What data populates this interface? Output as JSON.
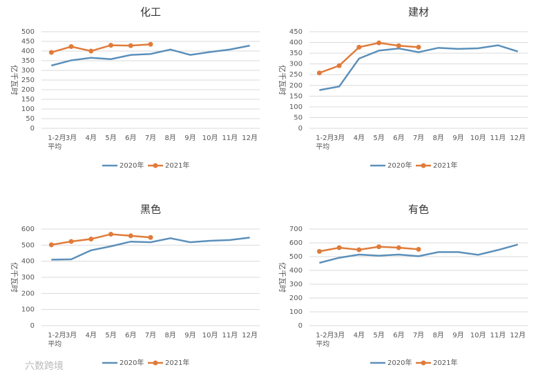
{
  "chart_data": [
    {
      "type": "line",
      "title": "化工",
      "y_label": "亿千瓦时",
      "categories": [
        "1-2月\n平均",
        "3月",
        "4月",
        "5月",
        "6月",
        "7月",
        "8月",
        "9月",
        "10月",
        "11月",
        "12月"
      ],
      "series": [
        {
          "name": "2020年",
          "color": "#5b8fba",
          "values": [
            325,
            352,
            365,
            358,
            380,
            385,
            408,
            380,
            395,
            408,
            428
          ]
        },
        {
          "name": "2021年",
          "color": "#e07b39",
          "values": [
            393,
            423,
            400,
            430,
            428,
            435,
            null,
            null,
            null,
            null,
            null
          ]
        }
      ],
      "ylim": [
        0,
        500
      ],
      "yticks": [
        0,
        50,
        100,
        150,
        200,
        250,
        300,
        350,
        400,
        450,
        500
      ],
      "grid": true,
      "legend": "bottom"
    },
    {
      "type": "line",
      "title": "建材",
      "y_label": "亿千瓦时",
      "categories": [
        "1-2月\n平均",
        "3月",
        "4月",
        "5月",
        "6月",
        "7月",
        "8月",
        "9月",
        "10月",
        "11月",
        "12月"
      ],
      "series": [
        {
          "name": "2020年",
          "color": "#5b8fba",
          "values": [
            178,
            195,
            325,
            362,
            372,
            355,
            375,
            370,
            373,
            387,
            358
          ]
        },
        {
          "name": "2021年",
          "color": "#e07b39",
          "values": [
            258,
            292,
            378,
            398,
            385,
            378,
            null,
            null,
            null,
            null,
            null
          ]
        }
      ],
      "ylim": [
        0,
        450
      ],
      "yticks": [
        0,
        50,
        100,
        150,
        200,
        250,
        300,
        350,
        400,
        450
      ],
      "grid": true,
      "legend": "bottom"
    },
    {
      "type": "line",
      "title": "黑色",
      "y_label": "亿千瓦时",
      "categories": [
        "1-2月\n平均",
        "3月",
        "4月",
        "5月",
        "6月",
        "7月",
        "8月",
        "9月",
        "10月",
        "11月",
        "12月"
      ],
      "series": [
        {
          "name": "2020年",
          "color": "#5b8fba",
          "values": [
            410,
            412,
            468,
            493,
            522,
            518,
            543,
            518,
            527,
            532,
            547
          ]
        },
        {
          "name": "2021年",
          "color": "#e07b39",
          "values": [
            502,
            523,
            538,
            568,
            558,
            548,
            null,
            null,
            null,
            null,
            null
          ]
        }
      ],
      "ylim": [
        0,
        600
      ],
      "yticks": [
        0,
        100,
        200,
        300,
        400,
        500,
        600
      ],
      "grid": true,
      "legend": "bottom"
    },
    {
      "type": "line",
      "title": "有色",
      "y_label": "亿千瓦时",
      "categories": [
        "1-2月\n平均",
        "3月",
        "4月",
        "5月",
        "6月",
        "7月",
        "8月",
        "9月",
        "10月",
        "11月",
        "12月"
      ],
      "series": [
        {
          "name": "2020年",
          "color": "#5b8fba",
          "values": [
            455,
            492,
            515,
            507,
            515,
            503,
            533,
            533,
            513,
            548,
            588
          ]
        },
        {
          "name": "2021年",
          "color": "#e07b39",
          "values": [
            538,
            565,
            550,
            572,
            565,
            553,
            null,
            null,
            null,
            null,
            null
          ]
        }
      ],
      "ylim": [
        0,
        700
      ],
      "yticks": [
        0,
        100,
        200,
        300,
        400,
        500,
        600,
        700
      ],
      "grid": true,
      "legend": "bottom"
    }
  ],
  "watermark": "六数跨境"
}
